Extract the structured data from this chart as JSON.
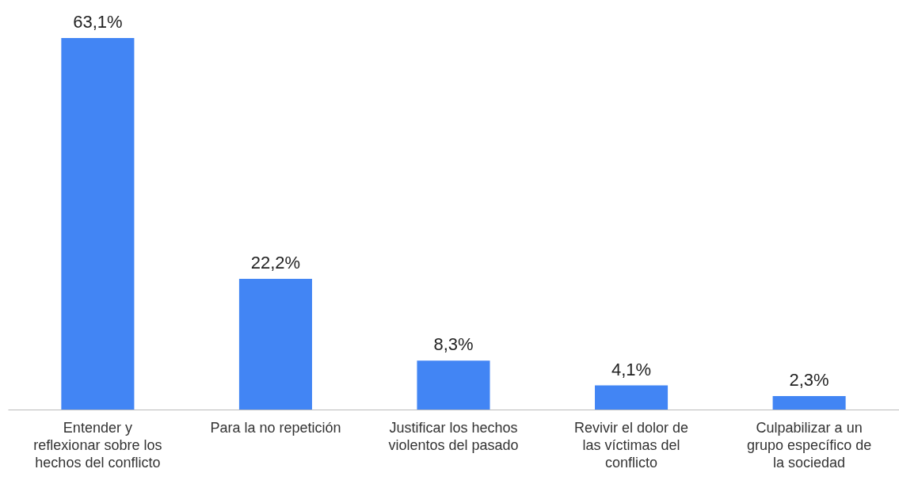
{
  "chart_data": {
    "type": "bar",
    "categories": [
      "Entender y reflexionar sobre los hechos del conflicto",
      "Para la no repetición",
      "Justificar los hechos violentos del pasado",
      "Revivir el dolor de las víctimas del conflicto",
      "Culpabilizar a un grupo específico de la sociedad"
    ],
    "values": [
      63.1,
      22.2,
      8.3,
      4.1,
      2.3
    ],
    "value_labels": [
      "63,1%",
      "22,2%",
      "8,3%",
      "4,1%",
      "2,3%"
    ],
    "color": "#4285f4",
    "grid": false
  }
}
